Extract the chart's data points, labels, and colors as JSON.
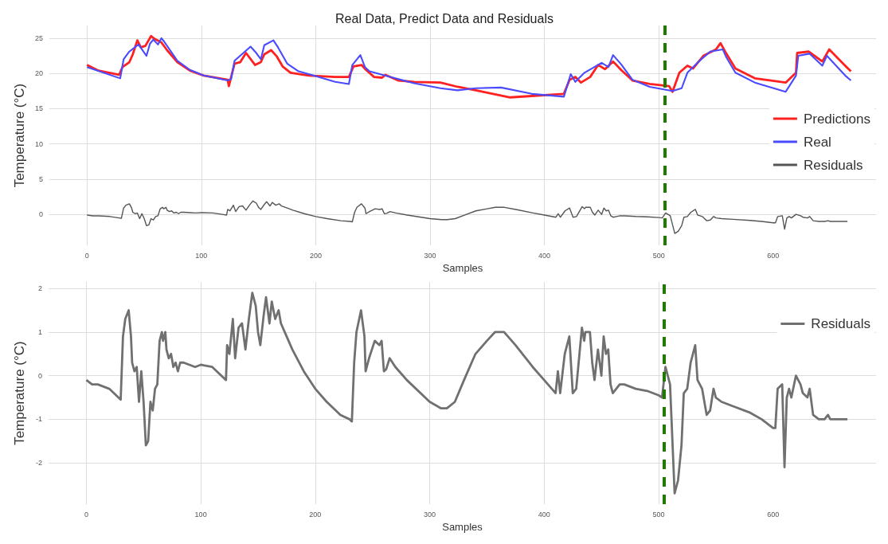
{
  "chart_data": [
    {
      "type": "line",
      "title": "Real Data, Predict Data and Residuals",
      "xlabel": "Samples",
      "ylabel": "Temperature (°C)",
      "xlim": [
        -33,
        690
      ],
      "xticks": [
        0,
        100,
        200,
        300,
        400,
        500,
        600
      ],
      "ylim": [
        -4.4,
        26.8
      ],
      "yticks": [
        0,
        5,
        10,
        15,
        20,
        25
      ],
      "grid": true,
      "legend": "right",
      "marker": "none",
      "line_style": "solid",
      "ref_lines": [
        {
          "axis": "x",
          "value": 505,
          "color": "#1e7b00",
          "line_style": "dashed"
        }
      ],
      "series": [
        {
          "name": "Predictions",
          "color": "#ff2020",
          "x": [
            0,
            10,
            28,
            31,
            37,
            40,
            44,
            47,
            51,
            56,
            59,
            65,
            70,
            79,
            90,
            102,
            123,
            124,
            129,
            134,
            139,
            147,
            152,
            155,
            161,
            166,
            171,
            178,
            194,
            217,
            229,
            233,
            240,
            244,
            251,
            258,
            261,
            272,
            286,
            309,
            324,
            340,
            370,
            389,
            417,
            422,
            427,
            432,
            440,
            447,
            453,
            460,
            467,
            477,
            492,
            509,
            512,
            518,
            525,
            530,
            539,
            550,
            554,
            558,
            567,
            584,
            611,
            620,
            621,
            631,
            643,
            649,
            663,
            668
          ],
          "values": [
            21.2,
            20.4,
            19.8,
            20.9,
            21.6,
            22.7,
            24.7,
            23.7,
            23.9,
            25.3,
            24.9,
            24.4,
            23.3,
            21.6,
            20.4,
            19.7,
            19.1,
            18.2,
            21.4,
            21.6,
            22.9,
            21.2,
            21.6,
            22.7,
            23.3,
            22.4,
            21.0,
            20.1,
            19.7,
            19.5,
            19.5,
            21.0,
            21.2,
            20.5,
            19.5,
            19.4,
            19.8,
            19.0,
            18.8,
            18.7,
            18.1,
            17.6,
            16.6,
            16.8,
            17.1,
            19.1,
            19.5,
            18.7,
            19.5,
            21.2,
            20.6,
            21.7,
            20.5,
            19.0,
            18.5,
            18.2,
            17.4,
            20.1,
            21.1,
            20.7,
            22.5,
            23.4,
            24.3,
            23.1,
            20.7,
            19.3,
            18.7,
            20.1,
            22.9,
            23.1,
            21.7,
            23.4,
            21.1,
            20.3
          ]
        },
        {
          "name": "Real",
          "color": "#4a4aff",
          "x": [
            0,
            29,
            32,
            37,
            45,
            52,
            55,
            58,
            62,
            65,
            67,
            79,
            90,
            102,
            123,
            126,
            129,
            143,
            148,
            152,
            155,
            163,
            167,
            175,
            185,
            198,
            217,
            229,
            232,
            239,
            243,
            247,
            263,
            286,
            309,
            324,
            340,
            362,
            389,
            417,
            423,
            427,
            435,
            450,
            456,
            460,
            467,
            477,
            492,
            512,
            520,
            525,
            535,
            545,
            556,
            559,
            567,
            584,
            611,
            620,
            622,
            632,
            643,
            647,
            663,
            668
          ],
          "values": [
            20.9,
            19.3,
            22.0,
            23.1,
            24.1,
            22.5,
            24.2,
            24.8,
            24.1,
            25.0,
            24.6,
            21.8,
            20.5,
            19.7,
            19.0,
            19.2,
            21.8,
            23.8,
            22.9,
            22.0,
            24.0,
            24.7,
            23.7,
            21.4,
            20.3,
            19.7,
            18.8,
            18.5,
            21.2,
            22.6,
            20.9,
            20.3,
            19.6,
            18.6,
            17.9,
            17.6,
            17.9,
            18.0,
            17.1,
            16.7,
            19.9,
            18.8,
            20.1,
            21.5,
            20.9,
            22.6,
            21.3,
            19.1,
            18.1,
            17.5,
            17.9,
            20.1,
            21.7,
            23.1,
            23.4,
            22.3,
            20.1,
            18.7,
            17.4,
            19.7,
            22.5,
            22.8,
            21.1,
            22.5,
            19.7,
            19.0
          ]
        },
        {
          "name": "Residuals",
          "color": "#555555",
          "x": [
            0,
            5,
            10,
            20,
            28,
            30,
            32,
            34,
            37,
            39,
            40,
            42,
            44,
            46,
            48,
            50,
            52,
            54,
            56,
            58,
            60,
            62,
            64,
            66,
            67,
            69,
            70,
            72,
            74,
            76,
            78,
            80,
            82,
            85,
            90,
            95,
            100,
            110,
            118,
            122,
            123,
            125,
            128,
            130,
            133,
            136,
            139,
            142,
            145,
            148,
            150,
            152,
            155,
            157,
            160,
            162,
            165,
            168,
            170,
            175,
            180,
            190,
            200,
            210,
            222,
            230,
            232,
            234,
            236,
            240,
            243,
            244,
            247,
            252,
            256,
            258,
            260,
            262,
            265,
            270,
            280,
            300,
            310,
            315,
            322,
            330,
            340,
            350,
            357,
            365,
            375,
            390,
            400,
            410,
            412,
            414,
            418,
            422,
            425,
            428,
            433,
            435,
            436,
            440,
            442,
            444,
            447,
            450,
            452,
            454,
            456,
            458,
            460,
            463,
            466,
            470,
            480,
            490,
            500,
            503,
            506,
            510,
            514,
            517,
            520,
            522,
            525,
            528,
            532,
            534,
            536,
            538,
            540,
            542,
            545,
            548,
            550,
            555,
            565,
            580,
            590,
            600,
            602,
            604,
            608,
            610,
            612,
            614,
            616,
            620,
            624,
            626,
            630,
            632,
            635,
            640,
            645,
            648,
            650,
            665
          ],
          "values": [
            -0.1,
            -0.2,
            -0.2,
            -0.3,
            -0.5,
            -0.55,
            0.9,
            1.3,
            1.5,
            0.9,
            0.3,
            0.1,
            0.2,
            -0.6,
            0.1,
            -0.6,
            -1.6,
            -1.5,
            -0.6,
            -0.8,
            -0.3,
            -0.2,
            0.8,
            1.0,
            0.8,
            1.0,
            0.6,
            0.4,
            0.5,
            0.2,
            0.3,
            0.1,
            0.3,
            0.3,
            0.25,
            0.2,
            0.25,
            0.2,
            0.0,
            -0.1,
            0.7,
            0.5,
            1.3,
            0.4,
            1.1,
            1.2,
            0.6,
            1.3,
            1.9,
            1.6,
            1.0,
            0.7,
            1.4,
            1.8,
            1.2,
            1.7,
            1.3,
            1.5,
            1.2,
            0.9,
            0.6,
            0.1,
            -0.3,
            -0.6,
            -0.9,
            -1.0,
            -1.05,
            0.3,
            1.0,
            1.5,
            0.9,
            0.1,
            0.4,
            0.8,
            0.7,
            0.8,
            0.1,
            0.15,
            0.4,
            0.2,
            -0.1,
            -0.6,
            -0.75,
            -0.75,
            -0.6,
            -0.1,
            0.5,
            0.8,
            1.0,
            1.0,
            0.7,
            0.2,
            -0.1,
            -0.4,
            0.1,
            -0.4,
            0.5,
            0.9,
            -0.4,
            -0.3,
            1.1,
            0.8,
            1.0,
            1.0,
            0.3,
            -0.1,
            0.6,
            0.0,
            0.9,
            0.5,
            0.6,
            -0.2,
            -0.4,
            -0.3,
            -0.2,
            -0.2,
            -0.3,
            -0.35,
            -0.45,
            -0.5,
            0.2,
            -0.2,
            -2.7,
            -2.4,
            -1.6,
            -0.4,
            -0.3,
            0.3,
            0.7,
            -0.1,
            -0.2,
            -0.3,
            -0.6,
            -0.9,
            -0.8,
            -0.3,
            -0.5,
            -0.6,
            -0.7,
            -0.85,
            -1.0,
            -1.2,
            -1.2,
            -0.3,
            -0.2,
            -2.1,
            -0.5,
            -0.3,
            -0.5,
            0.0,
            -0.2,
            -0.4,
            -0.5,
            -0.3,
            -0.9,
            -1.0,
            -1.0,
            -0.9,
            -1.0,
            -1.0
          ]
        }
      ]
    },
    {
      "type": "line",
      "xlabel": "Samples",
      "ylabel": "Temperature (°C)",
      "xlim": [
        -33,
        690
      ],
      "xticks": [
        0,
        100,
        200,
        300,
        400,
        500,
        600
      ],
      "ylim": [
        -2.95,
        2.15
      ],
      "yticks": [
        -2,
        -1,
        0,
        1,
        2
      ],
      "grid": true,
      "legend": "top right",
      "marker": "none",
      "line_style": "solid",
      "ref_lines": [
        {
          "axis": "x",
          "value": 505,
          "color": "#1e7b00",
          "line_style": "dashed"
        }
      ],
      "series": [
        {
          "name": "Residuals",
          "color": "#707070",
          "x": [
            0,
            5,
            10,
            20,
            28,
            30,
            32,
            34,
            37,
            39,
            40,
            42,
            44,
            46,
            48,
            50,
            52,
            54,
            56,
            58,
            60,
            62,
            64,
            66,
            67,
            69,
            70,
            72,
            74,
            76,
            78,
            80,
            82,
            85,
            90,
            95,
            100,
            110,
            118,
            122,
            123,
            125,
            128,
            130,
            133,
            136,
            139,
            142,
            145,
            148,
            150,
            152,
            155,
            157,
            160,
            162,
            165,
            168,
            170,
            175,
            180,
            190,
            200,
            210,
            222,
            230,
            232,
            234,
            236,
            240,
            243,
            244,
            247,
            252,
            256,
            258,
            260,
            262,
            265,
            270,
            280,
            300,
            310,
            315,
            322,
            330,
            340,
            350,
            357,
            365,
            375,
            390,
            400,
            410,
            412,
            414,
            418,
            422,
            425,
            428,
            433,
            435,
            436,
            440,
            442,
            444,
            447,
            450,
            452,
            454,
            456,
            458,
            460,
            463,
            466,
            470,
            480,
            490,
            500,
            503,
            506,
            510,
            514,
            517,
            520,
            522,
            525,
            528,
            532,
            534,
            536,
            538,
            540,
            542,
            545,
            548,
            550,
            555,
            565,
            580,
            590,
            600,
            602,
            604,
            608,
            610,
            612,
            614,
            616,
            620,
            624,
            626,
            630,
            632,
            635,
            640,
            645,
            648,
            650,
            665
          ],
          "values": [
            -0.1,
            -0.2,
            -0.2,
            -0.3,
            -0.5,
            -0.55,
            0.9,
            1.3,
            1.5,
            0.9,
            0.3,
            0.1,
            0.2,
            -0.6,
            0.1,
            -0.6,
            -1.6,
            -1.5,
            -0.6,
            -0.8,
            -0.3,
            -0.2,
            0.8,
            1.0,
            0.8,
            1.0,
            0.6,
            0.4,
            0.5,
            0.2,
            0.3,
            0.1,
            0.3,
            0.3,
            0.25,
            0.2,
            0.25,
            0.2,
            0.0,
            -0.1,
            0.7,
            0.5,
            1.3,
            0.4,
            1.1,
            1.2,
            0.6,
            1.3,
            1.9,
            1.6,
            1.0,
            0.7,
            1.4,
            1.8,
            1.2,
            1.7,
            1.3,
            1.5,
            1.2,
            0.9,
            0.6,
            0.1,
            -0.3,
            -0.6,
            -0.9,
            -1.0,
            -1.05,
            0.3,
            1.0,
            1.5,
            0.9,
            0.1,
            0.4,
            0.8,
            0.7,
            0.8,
            0.1,
            0.15,
            0.4,
            0.2,
            -0.1,
            -0.6,
            -0.75,
            -0.75,
            -0.6,
            -0.1,
            0.5,
            0.8,
            1.0,
            1.0,
            0.7,
            0.2,
            -0.1,
            -0.4,
            0.1,
            -0.4,
            0.5,
            0.9,
            -0.4,
            -0.3,
            1.1,
            0.8,
            1.0,
            1.0,
            0.3,
            -0.1,
            0.6,
            0.0,
            0.9,
            0.5,
            0.6,
            -0.2,
            -0.4,
            -0.3,
            -0.2,
            -0.2,
            -0.3,
            -0.35,
            -0.45,
            -0.5,
            0.2,
            -0.2,
            -2.7,
            -2.4,
            -1.6,
            -0.4,
            -0.3,
            0.3,
            0.7,
            -0.1,
            -0.2,
            -0.3,
            -0.6,
            -0.9,
            -0.8,
            -0.3,
            -0.5,
            -0.6,
            -0.7,
            -0.85,
            -1.0,
            -1.2,
            -1.2,
            -0.3,
            -0.2,
            -2.1,
            -0.5,
            -0.3,
            -0.5,
            0.0,
            -0.2,
            -0.4,
            -0.5,
            -0.3,
            -0.9,
            -1.0,
            -1.0,
            -0.9,
            -1.0,
            -1.0
          ]
        }
      ]
    }
  ]
}
